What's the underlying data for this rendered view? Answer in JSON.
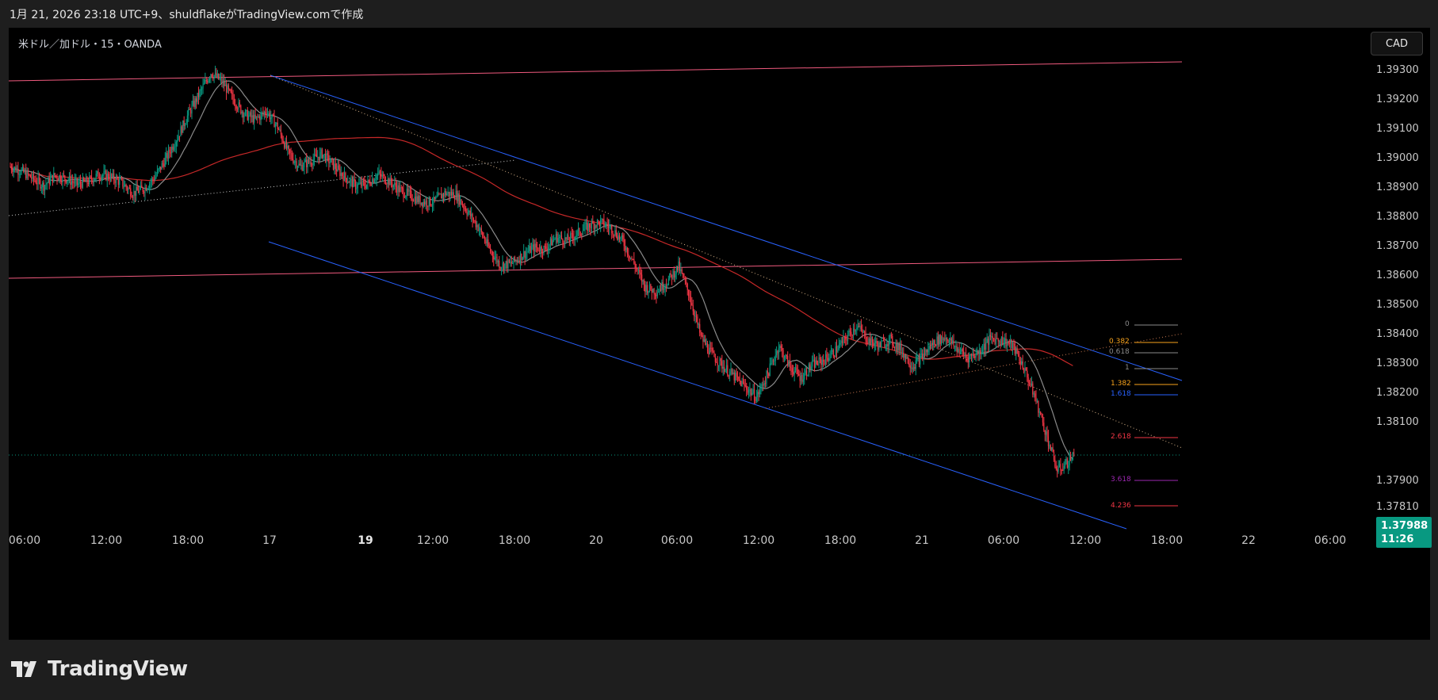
{
  "header": {
    "caption": "1月 21, 2026 23:18 UTC+9、shuldflakeがTradingView.comで作成"
  },
  "chart": {
    "symbol": "米ドル／加ドル・15・OANDA",
    "currency_button": "CAD",
    "current_price": "1.37988",
    "countdown": "11:26"
  },
  "footer": {
    "brand": "TradingView"
  },
  "colors": {
    "up": "#089981",
    "down": "#f23645",
    "channel": "#2962ff",
    "resistance": "#f05a7e",
    "ma_slow": "#c62828",
    "ma_fast": "#8a8a8a"
  },
  "chart_data": {
    "type": "candlestick",
    "price_ticks": [
      "1.39300",
      "1.39200",
      "1.39100",
      "1.39000",
      "1.38900",
      "1.38800",
      "1.38700",
      "1.38600",
      "1.38500",
      "1.38400",
      "1.38300",
      "1.38200",
      "1.38100",
      "1.37900",
      "1.37810"
    ],
    "time_ticks": [
      "06:00",
      "12:00",
      "18:00",
      "17",
      "19",
      "12:00",
      "18:00",
      "20",
      "06:00",
      "12:00",
      "18:00",
      "21",
      "06:00",
      "12:00",
      "18:00",
      "22",
      "06:00"
    ],
    "fib_levels": [
      {
        "label": "0",
        "color": "#8a8a8a"
      },
      {
        "label": "0.382",
        "color": "#f7a21b"
      },
      {
        "label": "0.618",
        "color": "#8a8a8a"
      },
      {
        "label": "1",
        "color": "#8a8a8a"
      },
      {
        "label": "1.382",
        "color": "#f7a21b"
      },
      {
        "label": "1.618",
        "color": "#2962ff"
      },
      {
        "label": "2.618",
        "color": "#f23645"
      },
      {
        "label": "3.618",
        "color": "#9c27b0"
      },
      {
        "label": "4.236",
        "color": "#f23645"
      }
    ],
    "price_path": [
      [
        0,
        1.3897
      ],
      [
        10,
        1.38955
      ],
      [
        20,
        1.3893
      ],
      [
        30,
        1.38905
      ],
      [
        40,
        1.3894
      ],
      [
        50,
        1.3893
      ],
      [
        60,
        1.3891
      ],
      [
        70,
        1.3892
      ],
      [
        80,
        1.38945
      ],
      [
        90,
        1.38935
      ],
      [
        100,
        1.38915
      ],
      [
        110,
        1.3888
      ],
      [
        120,
        1.38895
      ],
      [
        130,
        1.38935
      ],
      [
        140,
        1.39
      ],
      [
        150,
        1.3907
      ],
      [
        160,
        1.3915
      ],
      [
        170,
        1.3922
      ],
      [
        180,
        1.3929
      ],
      [
        190,
        1.3926
      ],
      [
        200,
        1.392
      ],
      [
        210,
        1.3915
      ],
      [
        220,
        1.3913
      ],
      [
        230,
        1.3916
      ],
      [
        240,
        1.39105
      ],
      [
        250,
        1.39015
      ],
      [
        260,
        1.3897
      ],
      [
        270,
        1.3899
      ],
      [
        280,
        1.39015
      ],
      [
        290,
        1.38975
      ],
      [
        300,
        1.38935
      ],
      [
        310,
        1.38905
      ],
      [
        320,
        1.3891
      ],
      [
        330,
        1.38945
      ],
      [
        340,
        1.3892
      ],
      [
        350,
        1.3889
      ],
      [
        360,
        1.3887
      ],
      [
        370,
        1.3885
      ],
      [
        380,
        1.3885
      ],
      [
        390,
        1.3888
      ],
      [
        400,
        1.38875
      ],
      [
        410,
        1.3882
      ],
      [
        420,
        1.38765
      ],
      [
        430,
        1.3869
      ],
      [
        440,
        1.38635
      ],
      [
        450,
        1.3864
      ],
      [
        460,
        1.3867
      ],
      [
        470,
        1.38695
      ],
      [
        480,
        1.3869
      ],
      [
        490,
        1.3873
      ],
      [
        500,
        1.3872
      ],
      [
        510,
        1.38745
      ],
      [
        520,
        1.3877
      ],
      [
        530,
        1.3878
      ],
      [
        540,
        1.3876
      ],
      [
        550,
        1.38715
      ],
      [
        560,
        1.3864
      ],
      [
        570,
        1.3856
      ],
      [
        580,
        1.38545
      ],
      [
        590,
        1.3858
      ],
      [
        600,
        1.3863
      ],
      [
        610,
        1.3853
      ],
      [
        620,
        1.3839
      ],
      [
        630,
        1.3833
      ],
      [
        640,
        1.3829
      ],
      [
        650,
        1.38255
      ],
      [
        660,
        1.3822
      ],
      [
        670,
        1.38185
      ],
      [
        680,
        1.38265
      ],
      [
        690,
        1.3836
      ],
      [
        700,
        1.3829
      ],
      [
        710,
        1.3825
      ],
      [
        720,
        1.38295
      ],
      [
        730,
        1.3831
      ],
      [
        740,
        1.3834
      ],
      [
        750,
        1.38385
      ],
      [
        760,
        1.3843
      ],
      [
        770,
        1.3838
      ],
      [
        780,
        1.3836
      ],
      [
        790,
        1.3838
      ],
      [
        800,
        1.38345
      ],
      [
        810,
        1.3829
      ],
      [
        820,
        1.3833
      ],
      [
        830,
        1.38375
      ],
      [
        840,
        1.3839
      ],
      [
        850,
        1.3835
      ],
      [
        860,
        1.3832
      ],
      [
        870,
        1.3834
      ],
      [
        880,
        1.38385
      ],
      [
        890,
        1.3838
      ],
      [
        900,
        1.3836
      ],
      [
        910,
        1.38285
      ],
      [
        920,
        1.38185
      ],
      [
        930,
        1.3806
      ],
      [
        940,
        1.37935
      ],
      [
        950,
        1.37965
      ],
      [
        955,
        1.37988
      ]
    ]
  }
}
